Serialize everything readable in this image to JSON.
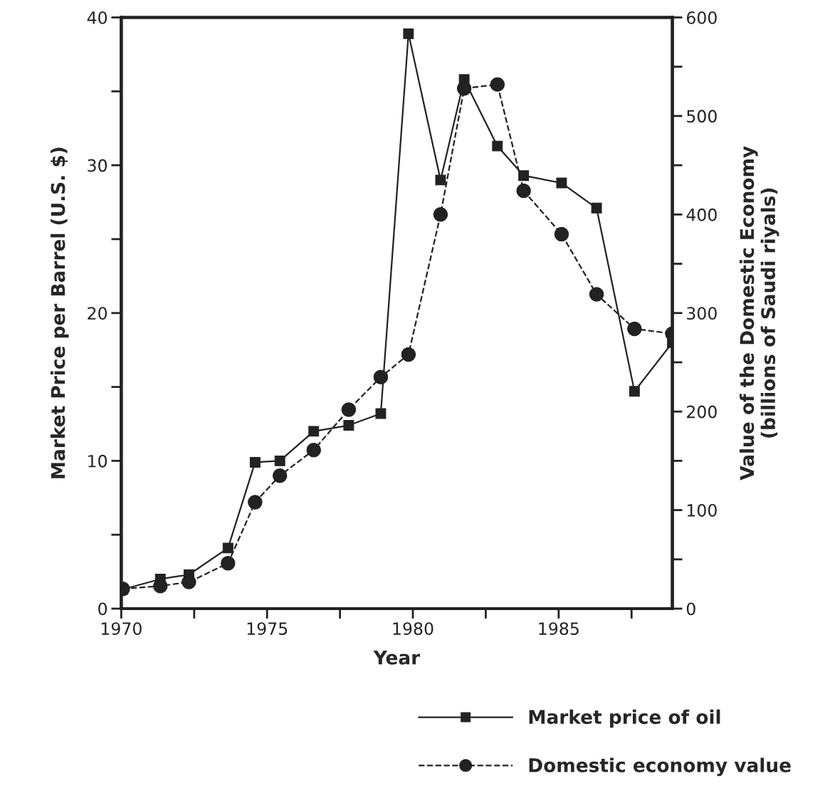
{
  "chart_data": {
    "type": "line",
    "xlabel": "Year",
    "ylabel": "Market Price per Barrel (U.S. $)",
    "y2label": "Value of the Domestic Economy\n(billions of Saudi riyals)",
    "xlim": [
      1970,
      1988.9
    ],
    "xticks": [
      1970,
      {
        "value": 1972.5,
        "label": null
      },
      1975,
      {
        "value": 1977.5,
        "label": null
      },
      1980,
      {
        "value": 1982.5,
        "label": null
      },
      1985,
      {
        "value": 1987.5,
        "label": null
      }
    ],
    "ylim": [
      0,
      40
    ],
    "yticks": [
      0,
      {
        "value": 5,
        "label": null
      },
      10,
      {
        "value": 15,
        "label": null
      },
      20,
      {
        "value": 25,
        "label": null
      },
      30,
      {
        "value": 35,
        "label": null
      },
      40
    ],
    "y2lim": [
      0,
      600
    ],
    "y2ticks": [
      0,
      {
        "value": 50,
        "label": null
      },
      100,
      {
        "value": 150,
        "label": null
      },
      200,
      {
        "value": 250,
        "label": null
      },
      300,
      {
        "value": 350,
        "label": null
      },
      400,
      {
        "value": 450,
        "label": null
      },
      500,
      {
        "value": 550,
        "label": null
      },
      600
    ],
    "grid": false,
    "legend": "bottom right",
    "series": [
      {
        "name": "Market price of oil",
        "color": "#222222",
        "marker": "square",
        "line_style": "solid",
        "x": [
          1970.05,
          1971.34,
          1972.32,
          1973.66,
          1974.59,
          1975.44,
          1976.6,
          1977.8,
          1978.9,
          1979.85,
          1980.95,
          1981.76,
          1982.9,
          1983.8,
          1985.1,
          1986.3,
          1987.6,
          1988.9
        ],
        "values": [
          1.3,
          2.0,
          2.3,
          4.1,
          9.9,
          10.0,
          12.0,
          12.4,
          13.2,
          38.9,
          29.0,
          35.8,
          31.3,
          29.3,
          28.8,
          27.1,
          14.7,
          18.0
        ]
      },
      {
        "name": "Domestic economy value",
        "color": "#222222",
        "marker": "circle",
        "line_style": "dashed",
        "axis": "y2",
        "x": [
          1970.05,
          1971.34,
          1972.32,
          1973.66,
          1974.59,
          1975.44,
          1976.6,
          1977.8,
          1978.9,
          1979.85,
          1980.95,
          1981.76,
          1982.9,
          1983.8,
          1985.1,
          1986.3,
          1987.6,
          1988.9
        ],
        "values": [
          20,
          23,
          27,
          46,
          108,
          135,
          161,
          202,
          235,
          258,
          400,
          528,
          532,
          424,
          380,
          319,
          284,
          279
        ]
      }
    ]
  }
}
